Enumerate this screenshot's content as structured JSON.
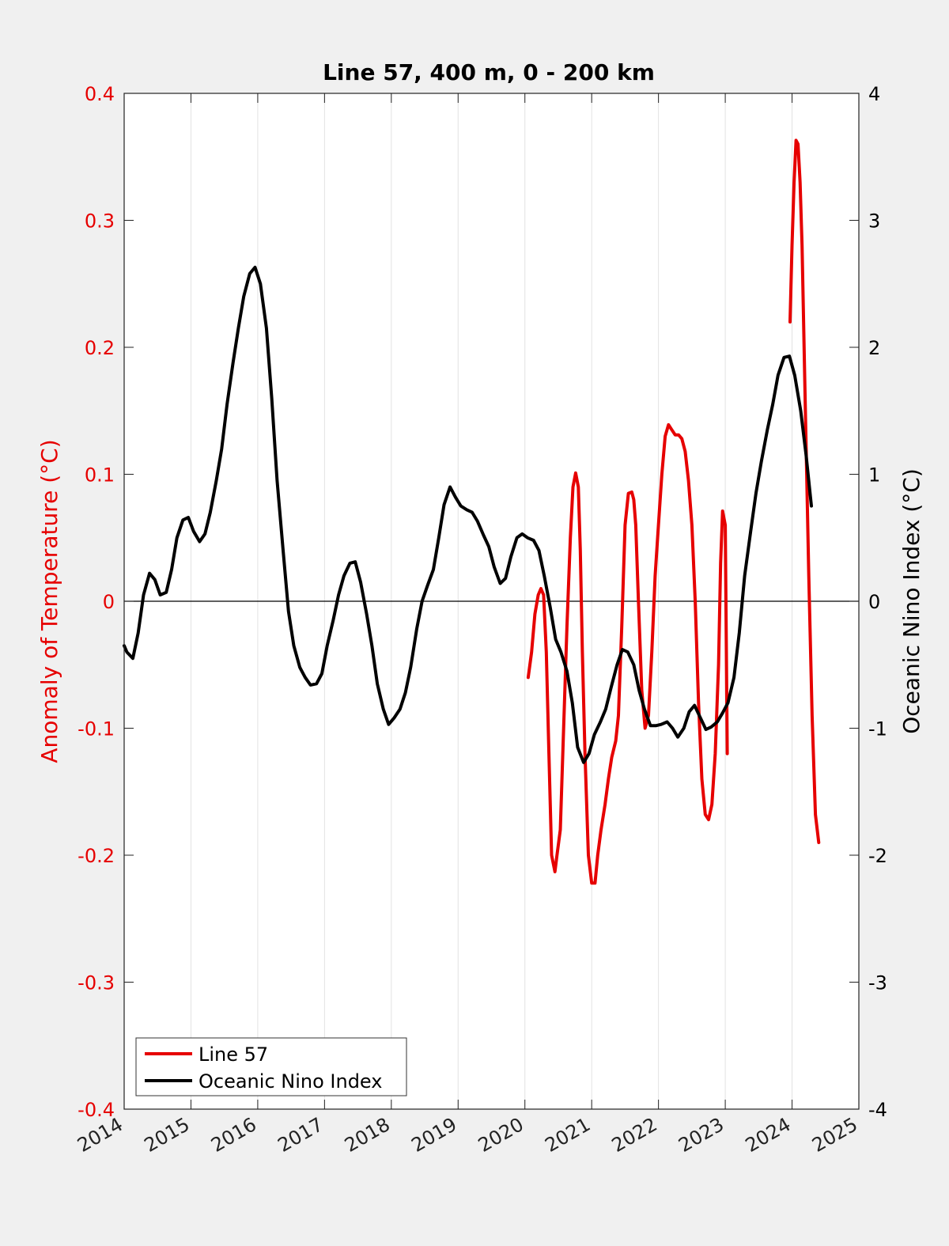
{
  "chart_data": {
    "type": "line",
    "title": "Line 57, 400 m, 0 - 200 km",
    "xlabel": "",
    "ylabel_left": "Anomaly of Temperature (°C)",
    "ylabel_right": "Oceanic Nino Index (°C)",
    "xlim": [
      2014,
      2025
    ],
    "ylim_left": [
      -0.4,
      0.4
    ],
    "ylim_right": [
      -4,
      4
    ],
    "x_ticks": [
      "2014",
      "2015",
      "2016",
      "2017",
      "2018",
      "2019",
      "2020",
      "2021",
      "2022",
      "2023",
      "2024",
      "2025"
    ],
    "y_ticks_left": [
      "0.4",
      "0.3",
      "0.2",
      "0.1",
      "0",
      "-0.1",
      "-0.2",
      "-0.3",
      "-0.4"
    ],
    "y_ticks_right": [
      "4",
      "3",
      "2",
      "1",
      "0",
      "-1",
      "-2",
      "-3",
      "-4"
    ],
    "zero_line": true,
    "vertical_grid": true,
    "legend_position": "bottom-left",
    "series": [
      {
        "name": "Line 57",
        "axis": "left",
        "color": "#e60000",
        "segments": [
          {
            "x": [
              2020.05,
              2020.1,
              2020.15,
              2020.2,
              2020.24,
              2020.28,
              2020.32,
              2020.36,
              2020.4,
              2020.45,
              2020.48,
              2020.53,
              2020.58,
              2020.63,
              2020.68,
              2020.72,
              2020.76,
              2020.8,
              2020.83,
              2020.86,
              2020.9,
              2020.95,
              2021.0,
              2021.05,
              2021.09,
              2021.14,
              2021.2,
              2021.25,
              2021.3,
              2021.36,
              2021.4,
              2021.45,
              2021.5,
              2021.55,
              2021.6,
              2021.63,
              2021.66,
              2021.7,
              2021.75,
              2021.8,
              2021.85,
              2021.9,
              2021.95,
              2022.0,
              2022.05,
              2022.1,
              2022.15,
              2022.2,
              2022.25,
              2022.3,
              2022.35,
              2022.4,
              2022.45,
              2022.5,
              2022.55,
              2022.6,
              2022.65,
              2022.7,
              2022.75,
              2022.8,
              2022.85,
              2022.9,
              2022.93,
              2022.96,
              2023.0,
              2023.03
            ],
            "y": [
              -0.06,
              -0.04,
              -0.01,
              0.005,
              0.01,
              0.005,
              -0.04,
              -0.12,
              -0.2,
              -0.213,
              -0.2,
              -0.18,
              -0.1,
              -0.02,
              0.05,
              0.09,
              0.101,
              0.09,
              0.04,
              -0.04,
              -0.12,
              -0.2,
              -0.222,
              -0.222,
              -0.2,
              -0.18,
              -0.16,
              -0.14,
              -0.123,
              -0.11,
              -0.09,
              -0.02,
              0.06,
              0.085,
              0.086,
              0.08,
              0.06,
              0.0,
              -0.07,
              -0.1,
              -0.09,
              -0.04,
              0.02,
              0.06,
              0.1,
              0.13,
              0.139,
              0.135,
              0.131,
              0.131,
              0.128,
              0.118,
              0.095,
              0.06,
              0.0,
              -0.08,
              -0.14,
              -0.168,
              -0.172,
              -0.16,
              -0.12,
              -0.05,
              0.03,
              0.071,
              0.06,
              -0.12
            ]
          },
          {
            "x": [
              2023.97,
              2024.0,
              2024.03,
              2024.06,
              2024.09,
              2024.12,
              2024.15,
              2024.2,
              2024.25,
              2024.3,
              2024.35,
              2024.4
            ],
            "y": [
              0.22,
              0.28,
              0.33,
              0.363,
              0.36,
              0.33,
              0.28,
              0.15,
              0.02,
              -0.09,
              -0.168,
              -0.19
            ]
          }
        ]
      },
      {
        "name": "Oceanic Nino Index",
        "axis": "right",
        "color": "#000000",
        "segments": [
          {
            "x": [
              2014.0,
              2014.04,
              2014.13,
              2014.21,
              2014.29,
              2014.38,
              2014.46,
              2014.54,
              2014.63,
              2014.71,
              2014.79,
              2014.88,
              2014.96,
              2015.04,
              2015.13,
              2015.21,
              2015.29,
              2015.38,
              2015.46,
              2015.54,
              2015.63,
              2015.71,
              2015.79,
              2015.88,
              2015.96,
              2016.04,
              2016.13,
              2016.21,
              2016.29,
              2016.38,
              2016.46,
              2016.54,
              2016.63,
              2016.71,
              2016.79,
              2016.88,
              2016.96,
              2017.04,
              2017.13,
              2017.21,
              2017.29,
              2017.38,
              2017.46,
              2017.54,
              2017.63,
              2017.71,
              2017.79,
              2017.88,
              2017.96,
              2018.04,
              2018.13,
              2018.21,
              2018.29,
              2018.38,
              2018.46,
              2018.54,
              2018.63,
              2018.71,
              2018.79,
              2018.88,
              2018.96,
              2019.04,
              2019.13,
              2019.21,
              2019.29,
              2019.38,
              2019.46,
              2019.54,
              2019.63,
              2019.71,
              2019.79,
              2019.88,
              2019.96,
              2020.04,
              2020.13,
              2020.21,
              2020.29,
              2020.38,
              2020.46,
              2020.54,
              2020.63,
              2020.71,
              2020.79,
              2020.88,
              2020.96,
              2021.04,
              2021.13,
              2021.21,
              2021.29,
              2021.38,
              2021.46,
              2021.54,
              2021.63,
              2021.71,
              2021.79,
              2021.88,
              2021.96,
              2022.04,
              2022.13,
              2022.21,
              2022.29,
              2022.38,
              2022.46,
              2022.54,
              2022.63,
              2022.71,
              2022.79,
              2022.88,
              2022.96,
              2023.04,
              2023.13,
              2023.21,
              2023.29,
              2023.38,
              2023.46,
              2023.54,
              2023.63,
              2023.71,
              2023.79,
              2023.88,
              2023.96,
              2024.04,
              2024.13,
              2024.21,
              2024.29
            ],
            "y": [
              -0.35,
              -0.4,
              -0.45,
              -0.25,
              0.05,
              0.22,
              0.17,
              0.05,
              0.07,
              0.25,
              0.5,
              0.64,
              0.66,
              0.55,
              0.47,
              0.53,
              0.7,
              0.95,
              1.2,
              1.55,
              1.88,
              2.15,
              2.4,
              2.58,
              2.63,
              2.5,
              2.15,
              1.6,
              0.95,
              0.4,
              -0.08,
              -0.35,
              -0.52,
              -0.6,
              -0.66,
              -0.65,
              -0.57,
              -0.35,
              -0.15,
              0.05,
              0.2,
              0.3,
              0.31,
              0.15,
              -0.1,
              -0.35,
              -0.65,
              -0.85,
              -0.97,
              -0.92,
              -0.85,
              -0.72,
              -0.52,
              -0.22,
              0.0,
              0.12,
              0.25,
              0.5,
              0.76,
              0.9,
              0.82,
              0.75,
              0.72,
              0.7,
              0.63,
              0.52,
              0.43,
              0.27,
              0.14,
              0.18,
              0.35,
              0.5,
              0.53,
              0.5,
              0.48,
              0.4,
              0.2,
              -0.05,
              -0.3,
              -0.4,
              -0.55,
              -0.8,
              -1.15,
              -1.27,
              -1.2,
              -1.05,
              -0.95,
              -0.85,
              -0.68,
              -0.5,
              -0.38,
              -0.4,
              -0.5,
              -0.7,
              -0.85,
              -0.98,
              -0.98,
              -0.97,
              -0.95,
              -1.0,
              -1.07,
              -1.0,
              -0.87,
              -0.82,
              -0.92,
              -1.01,
              -0.99,
              -0.95,
              -0.88,
              -0.8,
              -0.6,
              -0.25,
              0.2,
              0.55,
              0.85,
              1.1,
              1.35,
              1.55,
              1.78,
              1.92,
              1.93,
              1.78,
              1.5,
              1.15,
              0.75
            ]
          }
        ]
      }
    ]
  }
}
